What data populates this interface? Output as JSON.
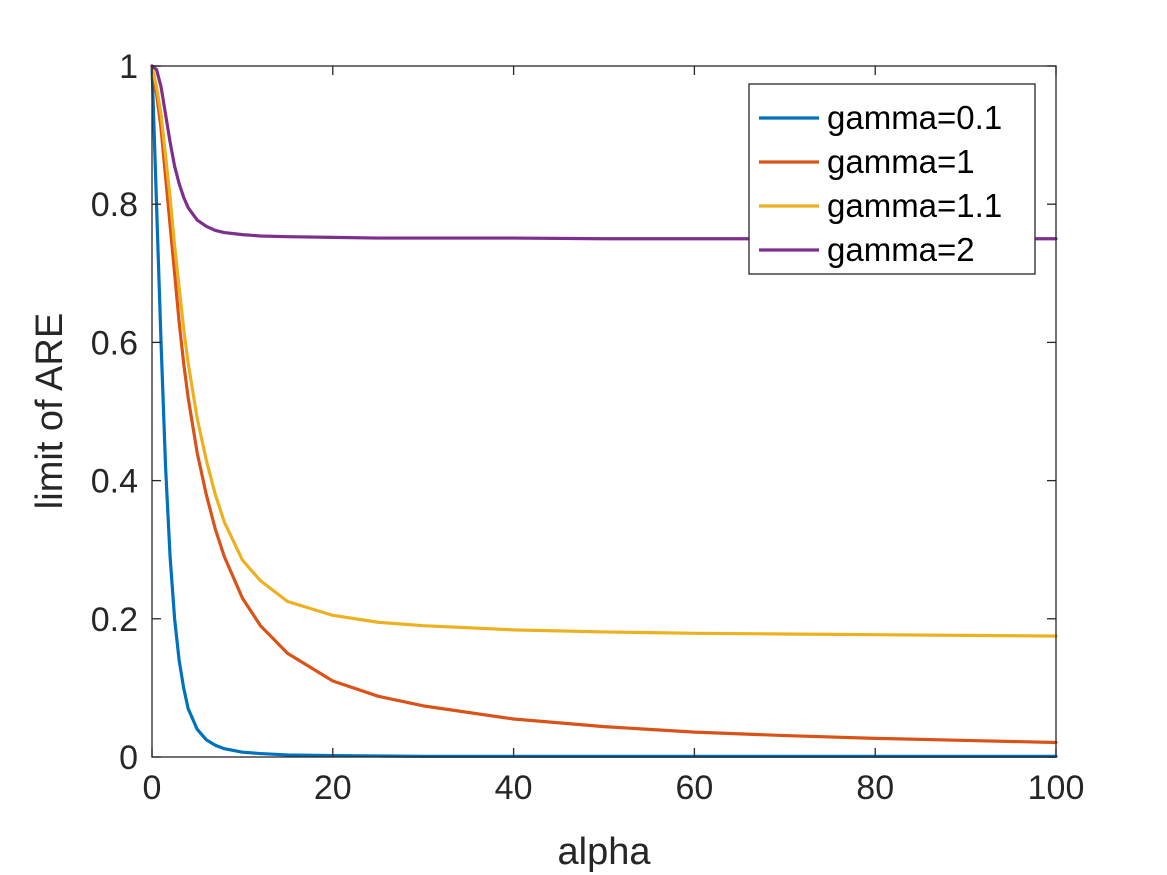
{
  "chart_data": {
    "type": "line",
    "title": "",
    "xlabel": "alpha",
    "ylabel": "limit of ARE",
    "xlim": [
      0,
      100
    ],
    "ylim": [
      0,
      1
    ],
    "xticks": [
      0,
      20,
      40,
      60,
      80,
      100
    ],
    "yticks": [
      0,
      0.2,
      0.4,
      0.6,
      0.8,
      1
    ],
    "xtick_labels": [
      "0",
      "20",
      "40",
      "60",
      "80",
      "100"
    ],
    "ytick_labels": [
      "0",
      "0.2",
      "0.4",
      "0.6",
      "0.8",
      "1"
    ],
    "grid": false,
    "legend_position": "top-right",
    "series": [
      {
        "name": "gamma=0.1",
        "color": "#0072BD",
        "x": [
          0,
          0.5,
          1,
          1.5,
          2,
          2.5,
          3,
          3.5,
          4,
          5,
          6,
          7,
          8,
          10,
          12,
          15,
          20,
          25,
          30,
          40,
          50,
          60,
          70,
          80,
          90,
          100
        ],
        "y": [
          1.0,
          0.8,
          0.6,
          0.42,
          0.29,
          0.2,
          0.14,
          0.1,
          0.07,
          0.04,
          0.025,
          0.017,
          0.012,
          0.007,
          0.005,
          0.003,
          0.002,
          0.0015,
          0.001,
          0.001,
          0.001,
          0.001,
          0.001,
          0.001,
          0.001,
          0.001
        ]
      },
      {
        "name": "gamma=1",
        "color": "#D95319",
        "x": [
          0,
          0.5,
          1,
          1.5,
          2,
          2.5,
          3,
          3.5,
          4,
          5,
          6,
          7,
          8,
          10,
          12,
          15,
          20,
          25,
          30,
          40,
          50,
          60,
          70,
          80,
          90,
          100
        ],
        "y": [
          1.0,
          0.96,
          0.91,
          0.84,
          0.77,
          0.7,
          0.63,
          0.57,
          0.52,
          0.44,
          0.38,
          0.33,
          0.29,
          0.23,
          0.19,
          0.15,
          0.11,
          0.088,
          0.074,
          0.055,
          0.044,
          0.036,
          0.031,
          0.027,
          0.024,
          0.021
        ]
      },
      {
        "name": "gamma=1.1",
        "color": "#EDB120",
        "x": [
          0,
          0.5,
          1,
          1.5,
          2,
          2.5,
          3,
          3.5,
          4,
          5,
          6,
          7,
          8,
          10,
          12,
          15,
          20,
          25,
          30,
          40,
          50,
          60,
          70,
          80,
          90,
          100
        ],
        "y": [
          1.0,
          0.97,
          0.93,
          0.87,
          0.81,
          0.74,
          0.68,
          0.62,
          0.57,
          0.49,
          0.43,
          0.38,
          0.34,
          0.285,
          0.255,
          0.225,
          0.205,
          0.195,
          0.19,
          0.184,
          0.181,
          0.179,
          0.178,
          0.177,
          0.176,
          0.175
        ]
      },
      {
        "name": "gamma=2",
        "color": "#7E2F8E",
        "x": [
          0,
          0.5,
          1,
          1.5,
          2,
          2.5,
          3,
          3.5,
          4,
          5,
          6,
          7,
          8,
          10,
          12,
          15,
          20,
          25,
          30,
          40,
          50,
          60,
          70,
          80,
          90,
          100
        ],
        "y": [
          1.0,
          0.995,
          0.97,
          0.93,
          0.89,
          0.855,
          0.83,
          0.81,
          0.795,
          0.777,
          0.768,
          0.762,
          0.759,
          0.756,
          0.754,
          0.753,
          0.752,
          0.751,
          0.751,
          0.751,
          0.75,
          0.75,
          0.75,
          0.75,
          0.75,
          0.75
        ]
      }
    ]
  }
}
